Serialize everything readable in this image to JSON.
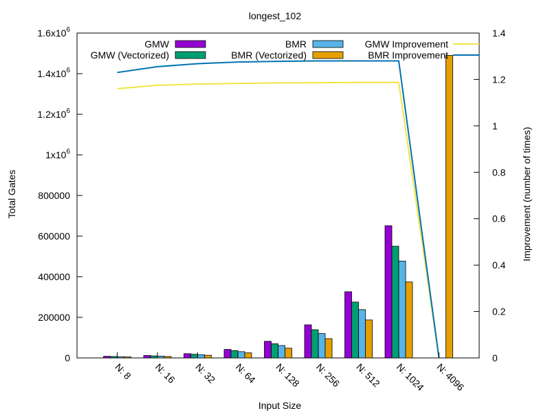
{
  "chart_data": {
    "type": "bar",
    "title": "longest_102",
    "xlabel": "Input Size",
    "ylabel": "Total Gates",
    "y2label": "Improvement (number of times)",
    "categories": [
      "N: 8",
      "N: 16",
      "N: 32",
      "N: 64",
      "N: 128",
      "N: 256",
      "N: 512",
      "N: 1024",
      "N: 4096"
    ],
    "ylim": [
      0,
      1600000
    ],
    "y2lim": [
      0,
      1.4
    ],
    "yticks": [
      {
        "value": 0,
        "label": "0"
      },
      {
        "value": 200000,
        "label": "200000"
      },
      {
        "value": 400000,
        "label": "400000"
      },
      {
        "value": 600000,
        "label": "600000"
      },
      {
        "value": 800000,
        "label": "800000"
      },
      {
        "value": 1000000,
        "label": "1x10",
        "exp": "6"
      },
      {
        "value": 1200000,
        "label": "1.2x10",
        "exp": "6"
      },
      {
        "value": 1400000,
        "label": "1.4x10",
        "exp": "6"
      },
      {
        "value": 1600000,
        "label": "1.6x10",
        "exp": "6"
      }
    ],
    "y2ticks": [
      "0",
      "0.2",
      "0.4",
      "0.6",
      "0.8",
      "1",
      "1.2",
      "1.4"
    ],
    "grid": false,
    "legend_position": "top",
    "series": [
      {
        "name": "GMW",
        "kind": "bar",
        "color": "#9400d3",
        "values": [
          8000,
          12000,
          21000,
          42000,
          82000,
          163000,
          326000,
          651000,
          0
        ]
      },
      {
        "name": "GMW (Vectorized)",
        "kind": "bar",
        "color": "#009e73",
        "values": [
          7000,
          10000,
          18000,
          36000,
          70000,
          139000,
          275000,
          550000,
          0
        ]
      },
      {
        "name": "BMR",
        "kind": "bar",
        "color": "#56b4e9",
        "values": [
          6000,
          9000,
          16000,
          31000,
          61000,
          120000,
          238000,
          477000,
          0
        ]
      },
      {
        "name": "BMR (Vectorized)",
        "kind": "bar",
        "color": "#e69f00",
        "values": [
          5000,
          7000,
          13000,
          25000,
          48000,
          95000,
          187000,
          374000,
          1490000
        ]
      },
      {
        "name": "GMW Improvement",
        "kind": "line",
        "axis": "y2",
        "color": "#f0e442",
        "values": [
          1.16,
          1.175,
          1.18,
          1.183,
          1.185,
          1.186,
          1.187,
          1.187,
          0
        ]
      },
      {
        "name": "BMR Improvement",
        "kind": "line",
        "axis": "y2",
        "color": "#0072b2",
        "values": [
          1.23,
          1.255,
          1.268,
          1.275,
          1.278,
          1.28,
          1.28,
          1.28,
          0
        ]
      }
    ]
  }
}
